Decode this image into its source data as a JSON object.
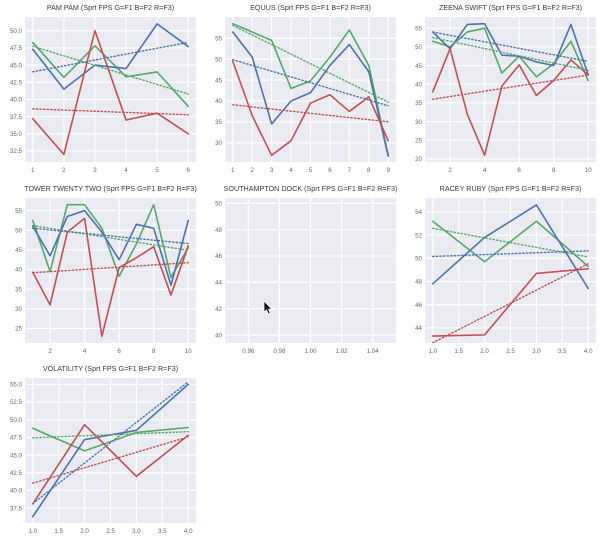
{
  "window": {
    "background": "#ffffff",
    "description": "Grid of seaborn-style line charts of sport FPS ratings with dotted linear trendlines"
  },
  "palette": {
    "green": "#55a868",
    "blue": "#4c72b0",
    "red": "#c44e52",
    "plot_bg": "#eaeaf2",
    "grid_line": "#ffffff",
    "title_color": "#3b3b3b",
    "tick_color": "#666666",
    "cursor_color": "#000000"
  },
  "cursor": {
    "chart_index": 4,
    "data_x": 0.9694,
    "data_y": 42.6
  },
  "chart_data": [
    {
      "type": "line",
      "title": "PAM PAM (Sprt FPS G=F1 B=F2 R=F3)",
      "xlim": [
        0.75,
        6.25
      ],
      "ylim": [
        30.9,
        52.0
      ],
      "xticks": {
        "values": [
          1,
          2,
          3,
          4,
          5,
          6
        ],
        "labels": [
          "1",
          "2",
          "3",
          "4",
          "5",
          "6"
        ]
      },
      "yticks": {
        "values": [
          32.5,
          35.0,
          37.5,
          40.0,
          42.5,
          45.0,
          47.5,
          50.0
        ],
        "labels": [
          "32.5",
          "35.0",
          "37.5",
          "40.0",
          "42.5",
          "45.0",
          "47.5",
          "50.0"
        ]
      },
      "x": [
        1,
        2,
        3,
        4,
        5,
        6
      ],
      "series": [
        {
          "name": "F1",
          "color": "green",
          "values": [
            48.3,
            43.2,
            47.8,
            43.3,
            44.0,
            39.0
          ]
        },
        {
          "name": "F2",
          "color": "blue",
          "values": [
            47.3,
            41.5,
            45.0,
            44.5,
            51.0,
            47.7
          ]
        },
        {
          "name": "F3",
          "color": "red",
          "values": [
            37.2,
            32.0,
            50.0,
            37.0,
            38.0,
            35.0
          ]
        }
      ],
      "trendlines": true,
      "grid": true,
      "legend": "none"
    },
    {
      "type": "line",
      "title": "EQUUS (Sprt FPS G=F1 B=F2 R=F3)",
      "xlim": [
        0.6,
        9.4
      ],
      "ylim": [
        25.4,
        60.1
      ],
      "xticks": {
        "values": [
          1,
          2,
          3,
          4,
          5,
          6,
          7,
          8,
          9
        ],
        "labels": [
          "1",
          "2",
          "3",
          "4",
          "5",
          "6",
          "7",
          "8",
          "9"
        ]
      },
      "yticks": {
        "values": [
          30,
          35,
          40,
          45,
          50,
          55
        ],
        "labels": [
          "30",
          "35",
          "40",
          "45",
          "50",
          "55"
        ]
      },
      "x": [
        1,
        2,
        3,
        4,
        5,
        6,
        7,
        8,
        9
      ],
      "series": [
        {
          "name": "F1",
          "color": "green",
          "values": [
            58.5,
            56.5,
            54.5,
            43.0,
            44.8,
            50.5,
            57.0,
            48.5,
            27.0
          ]
        },
        {
          "name": "F2",
          "color": "blue",
          "values": [
            56.5,
            50.5,
            34.5,
            40.0,
            42.0,
            48.5,
            53.5,
            47.0,
            26.8
          ]
        },
        {
          "name": "F3",
          "color": "red",
          "values": [
            49.5,
            36.5,
            27.0,
            30.5,
            39.5,
            41.5,
            37.5,
            41.0,
            30.5
          ]
        }
      ],
      "trendlines": true,
      "grid": true,
      "legend": "none"
    },
    {
      "type": "line",
      "title": "ZEENA SWIFT (Sprt FPS G=F1 B=F2 R=F3)",
      "xlim": [
        0.55,
        10.45
      ],
      "ylim": [
        19.2,
        58.0
      ],
      "xticks": {
        "values": [
          2,
          4,
          6,
          8,
          10
        ],
        "labels": [
          "2",
          "4",
          "6",
          "8",
          "10"
        ]
      },
      "yticks": {
        "values": [
          20,
          25,
          30,
          35,
          40,
          45,
          50,
          55
        ],
        "labels": [
          "20",
          "25",
          "30",
          "35",
          "40",
          "45",
          "50",
          "55"
        ]
      },
      "x": [
        1,
        2,
        3,
        4,
        5,
        6,
        7,
        8,
        9,
        10
      ],
      "series": [
        {
          "name": "F1",
          "color": "green",
          "values": [
            51.5,
            50.0,
            54.0,
            55.0,
            43.0,
            47.5,
            42.0,
            45.5,
            51.5,
            41.0
          ]
        },
        {
          "name": "F2",
          "color": "blue",
          "values": [
            54.0,
            49.5,
            56.0,
            56.2,
            47.8,
            47.5,
            46.0,
            45.0,
            56.0,
            42.5
          ]
        },
        {
          "name": "F3",
          "color": "red",
          "values": [
            38.0,
            49.5,
            32.0,
            21.0,
            39.5,
            45.2,
            37.0,
            41.0,
            46.5,
            42.5
          ]
        }
      ],
      "trendlines": true,
      "grid": true,
      "legend": "none"
    },
    {
      "type": "line",
      "title": "TOWER TWENTY TWO (Sprt FPS G=F1 B=F2 R=F3)",
      "xlim": [
        0.55,
        10.45
      ],
      "ylim": [
        21.3,
        58.2
      ],
      "xticks": {
        "values": [
          2,
          4,
          6,
          8,
          10
        ],
        "labels": [
          "2",
          "4",
          "6",
          "8",
          "10"
        ]
      },
      "yticks": {
        "values": [
          25,
          30,
          35,
          40,
          45,
          50,
          55
        ],
        "labels": [
          "25",
          "30",
          "35",
          "40",
          "45",
          "50",
          "55"
        ]
      },
      "x": [
        1,
        2,
        3,
        4,
        5,
        6,
        7,
        8,
        9,
        10
      ],
      "series": [
        {
          "name": "F1",
          "color": "green",
          "values": [
            52.5,
            39.5,
            56.5,
            56.5,
            50.5,
            38.3,
            46.5,
            56.5,
            38.0,
            45.5
          ]
        },
        {
          "name": "F2",
          "color": "blue",
          "values": [
            51.0,
            43.5,
            53.5,
            55.0,
            49.5,
            42.5,
            51.5,
            50.5,
            36.0,
            52.5
          ]
        },
        {
          "name": "F3",
          "color": "red",
          "values": [
            39.3,
            31.0,
            49.5,
            53.0,
            23.0,
            40.5,
            43.0,
            45.8,
            33.5,
            46.0
          ]
        }
      ],
      "trendlines": true,
      "grid": true,
      "legend": "none"
    },
    {
      "type": "line",
      "title": "SOUTHAMPTON DOCK (Sprt FPS G=F1 B=F2 R=F3)",
      "xlim": [
        0.945,
        1.055
      ],
      "ylim": [
        39.4,
        50.4
      ],
      "xticks": {
        "values": [
          0.96,
          0.98,
          1.0,
          1.02,
          1.04
        ],
        "labels": [
          "0.96",
          "0.98",
          "1.00",
          "1.02",
          "1.04"
        ]
      },
      "yticks": {
        "values": [
          40,
          42,
          44,
          46,
          48,
          50
        ],
        "labels": [
          "40",
          "42",
          "44",
          "46",
          "48",
          "50"
        ]
      },
      "x": [],
      "series": [],
      "trendlines": false,
      "grid": true,
      "legend": "none"
    },
    {
      "type": "line",
      "title": "RACEY RUBY (Sprt FPS G=F1 B=F2 R=F3)",
      "xlim": [
        0.85,
        4.15
      ],
      "ylim": [
        42.7,
        55.2
      ],
      "xticks": {
        "values": [
          1.0,
          1.5,
          2.0,
          2.5,
          3.0,
          3.5,
          4.0
        ],
        "labels": [
          "1.0",
          "1.5",
          "2.0",
          "2.5",
          "3.0",
          "3.5",
          "4.0"
        ]
      },
      "yticks": {
        "values": [
          44,
          46,
          48,
          50,
          52,
          54
        ],
        "labels": [
          "44",
          "46",
          "48",
          "50",
          "52",
          "54"
        ]
      },
      "x": [
        1,
        2,
        3,
        4
      ],
      "series": [
        {
          "name": "F1",
          "color": "green",
          "values": [
            53.2,
            49.7,
            53.2,
            49.3
          ]
        },
        {
          "name": "F2",
          "color": "blue",
          "values": [
            47.8,
            51.8,
            54.6,
            47.4
          ]
        },
        {
          "name": "F3",
          "color": "red",
          "values": [
            43.3,
            43.4,
            48.7,
            49.1
          ]
        }
      ],
      "trendlines": true,
      "grid": true,
      "legend": "none"
    },
    {
      "type": "line",
      "title": "VOLATILITY (Sprt FPS G=F1 B=F2 R=F3)",
      "xlim": [
        0.85,
        4.15
      ],
      "ylim": [
        35.4,
        55.9
      ],
      "xticks": {
        "values": [
          1.0,
          1.5,
          2.0,
          2.5,
          3.0,
          3.5,
          4.0
        ],
        "labels": [
          "1.0",
          "1.5",
          "2.0",
          "2.5",
          "3.0",
          "3.5",
          "4.0"
        ]
      },
      "yticks": {
        "values": [
          37.5,
          40.0,
          42.5,
          45.0,
          47.5,
          50.0,
          52.5,
          55.0
        ],
        "labels": [
          "37.5",
          "40.0",
          "42.5",
          "45.0",
          "47.5",
          "50.0",
          "52.5",
          "55.0"
        ]
      },
      "x": [
        1,
        2,
        3,
        4
      ],
      "series": [
        {
          "name": "F1",
          "color": "green",
          "values": [
            48.8,
            45.6,
            48.2,
            48.9
          ]
        },
        {
          "name": "F2",
          "color": "blue",
          "values": [
            36.3,
            47.2,
            48.5,
            55.0
          ]
        },
        {
          "name": "F3",
          "color": "red",
          "values": [
            38.1,
            49.3,
            42.0,
            47.8
          ]
        }
      ],
      "trendlines": true,
      "grid": true,
      "legend": "none"
    }
  ]
}
